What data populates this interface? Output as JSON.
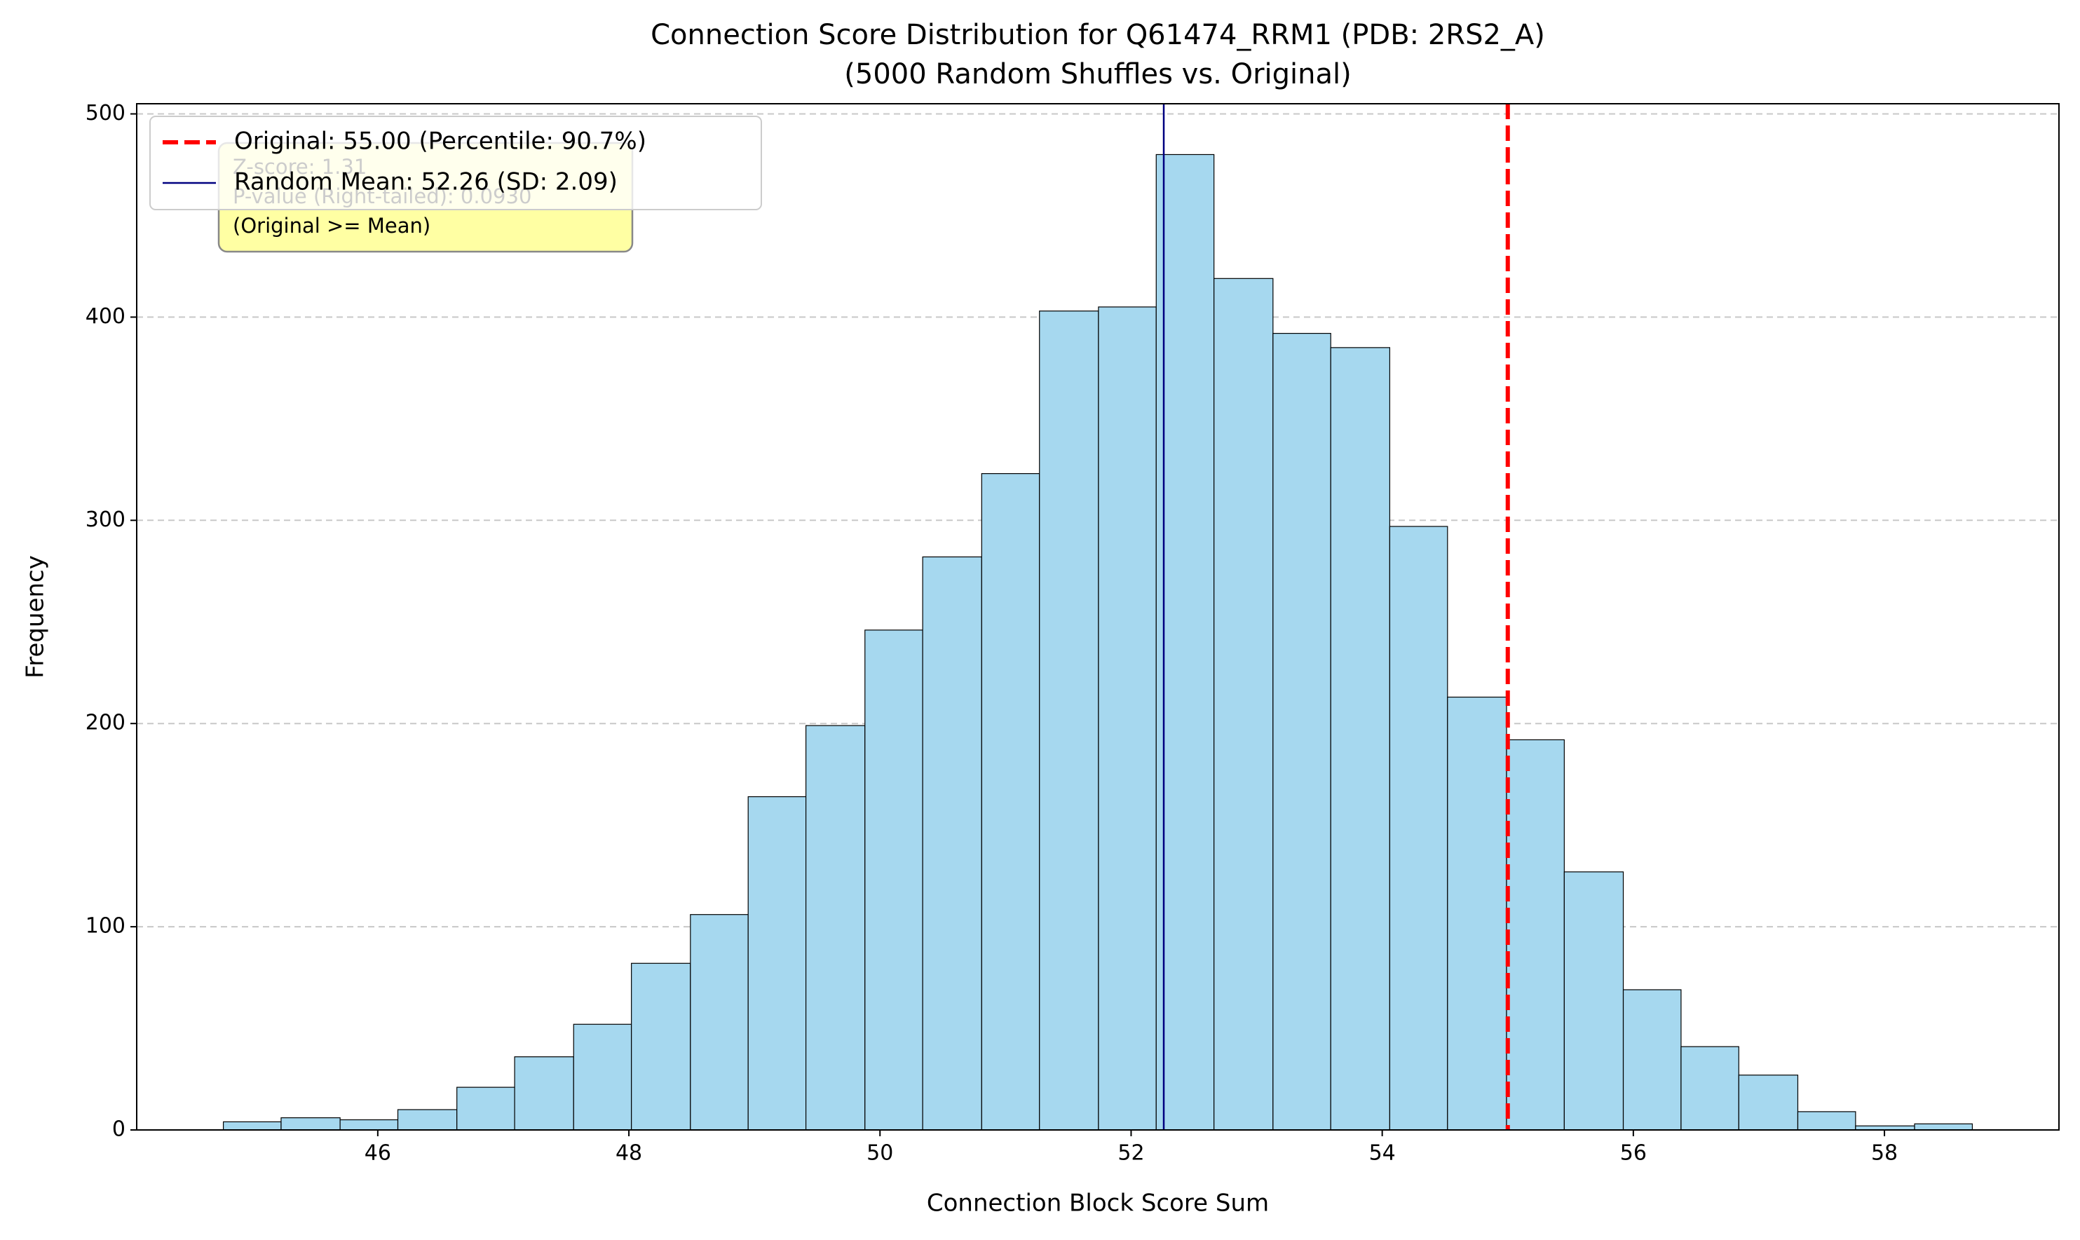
{
  "chart_data": {
    "type": "histogram",
    "title": "Connection Score Distribution for Q61474_RRM1 (PDB: 2RS2_A)",
    "subtitle": "(5000 Random Shuffles vs. Original)",
    "x_label": "Connection Block Score Sum",
    "y_label": "Frequency",
    "bins": [
      44.77,
      45.23,
      45.7,
      46.16,
      46.63,
      47.09,
      47.56,
      48.02,
      48.49,
      48.95,
      49.41,
      49.88,
      50.34,
      50.81,
      51.27,
      51.74,
      52.2,
      52.66,
      53.13,
      53.59,
      54.06,
      54.52,
      54.99,
      55.45,
      55.92,
      56.38,
      56.84,
      57.31,
      57.77,
      58.24,
      58.7
    ],
    "values": [
      4,
      6,
      5,
      10,
      21,
      36,
      52,
      82,
      106,
      164,
      199,
      246,
      282,
      323,
      403,
      405,
      480,
      419,
      392,
      385,
      297,
      213,
      192,
      127,
      69,
      41,
      27,
      9,
      2,
      3
    ],
    "color": "#a6d8ef",
    "edgecolor": "#000000",
    "xlim": [
      44.08,
      59.39
    ],
    "ylim": [
      0,
      505
    ],
    "xticks": [
      46,
      48,
      50,
      52,
      54,
      56,
      58
    ],
    "yticks": [
      0,
      100,
      200,
      300,
      400,
      500
    ],
    "grid": true,
    "vlines": [
      {
        "name": "Original: 55.00 (Percentile: 90.7%)",
        "x": 55.0,
        "color": "#ff0000",
        "style": "dashed"
      },
      {
        "name": "Random Mean: 52.26 (SD: 2.09)",
        "x": 52.26,
        "color": "#000080",
        "style": "solid"
      }
    ],
    "legend": "upper left",
    "annotation": [
      "Z-score: 1.31",
      "P-value (Right-tailed): 0.0930",
      "(Original >= Mean)"
    ]
  }
}
